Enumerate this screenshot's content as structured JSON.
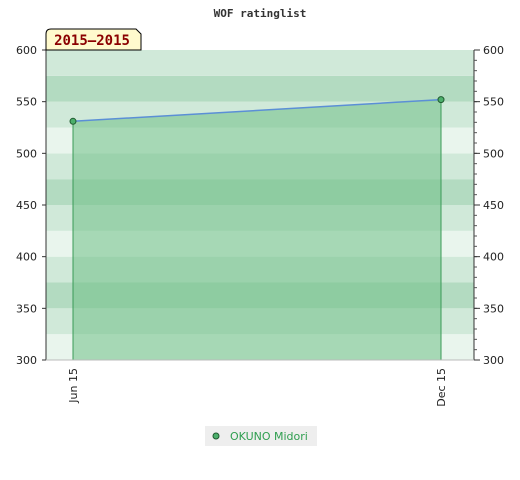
{
  "chart_data": {
    "type": "line",
    "title": "WOF ratinglist",
    "period_label": "2015—2015",
    "categories": [
      "Jun 15",
      "Dec 15"
    ],
    "series": [
      {
        "name": "OKUNO Midori",
        "values": [
          531,
          552
        ]
      }
    ],
    "ylim": [
      300,
      600
    ],
    "y_ticks": [
      300,
      350,
      400,
      450,
      500,
      550,
      600
    ],
    "xlabel": "",
    "ylabel": "",
    "grid": true,
    "area_fill": true,
    "legend_position": "bottom-center",
    "colors": {
      "line": "#5b8fd6",
      "area": "#6fbf86",
      "marker": "#4caf6b",
      "legend_text": "#2e9e4f",
      "band_dark": "#b3dbc1",
      "band_light": "#e9f5ed",
      "period_box": "#fffacd",
      "period_text": "#8b0000"
    }
  }
}
